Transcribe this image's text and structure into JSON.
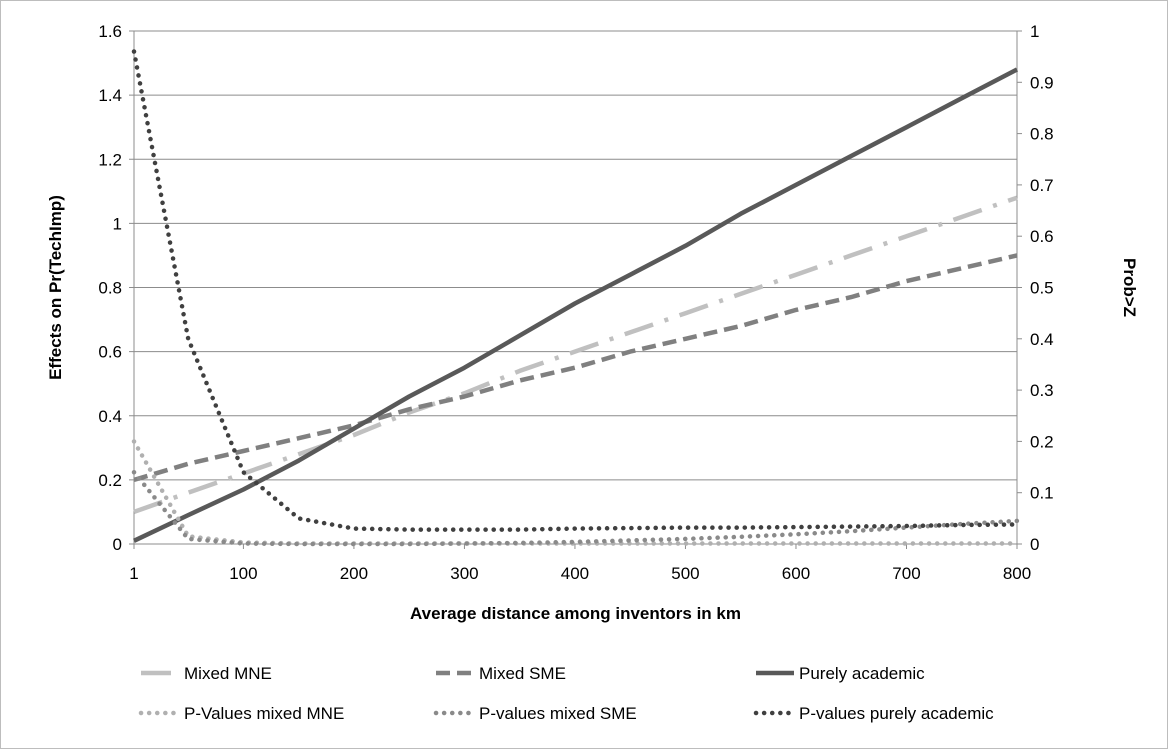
{
  "chart_data": {
    "type": "line",
    "title": "",
    "xlabel": "Average distance  among inventors in km",
    "ylabel": "Effects on Pr(TechImp)",
    "ylabel_right": "Prob>Z",
    "xlim": [
      1,
      800
    ],
    "ylim": [
      0,
      1.6
    ],
    "ylim_right": [
      0,
      1
    ],
    "x_ticks": [
      1,
      100,
      200,
      300,
      400,
      500,
      600,
      700,
      800
    ],
    "x_tick_labels": [
      "1",
      "100",
      "200",
      "300",
      "400",
      "500",
      "600",
      "700",
      "800"
    ],
    "y_ticks": [
      0,
      0.2,
      0.4,
      0.6,
      0.8,
      1,
      1.2,
      1.4,
      1.6
    ],
    "y_tick_labels": [
      "0",
      "0.2",
      "0.4",
      "0.6",
      "0.8",
      "1",
      "1.2",
      "1.4",
      "1.6"
    ],
    "y_right_ticks": [
      0,
      0.1,
      0.2,
      0.3,
      0.4,
      0.5,
      0.6,
      0.7,
      0.8,
      0.9,
      1
    ],
    "y_right_tick_labels": [
      "0",
      "0.1",
      "0.2",
      "0.3",
      "0.4",
      "0.5",
      "0.6",
      "0.7",
      "0.8",
      "0.9",
      "1"
    ],
    "grid": "horizontal",
    "legend_position": "bottom",
    "x": [
      1,
      50,
      100,
      150,
      200,
      250,
      300,
      350,
      400,
      450,
      500,
      550,
      600,
      650,
      700,
      750,
      800
    ],
    "series": [
      {
        "name": "Mixed MNE",
        "axis": "left",
        "style": "dash-dot",
        "color": "#c0c0c0",
        "values": [
          0.1,
          0.16,
          0.22,
          0.28,
          0.34,
          0.41,
          0.47,
          0.54,
          0.6,
          0.66,
          0.72,
          0.78,
          0.84,
          0.9,
          0.96,
          1.02,
          1.08
        ]
      },
      {
        "name": "Mixed SME",
        "axis": "left",
        "style": "dash",
        "color": "#808080",
        "values": [
          0.2,
          0.25,
          0.29,
          0.33,
          0.37,
          0.42,
          0.46,
          0.51,
          0.55,
          0.6,
          0.64,
          0.68,
          0.73,
          0.77,
          0.82,
          0.86,
          0.9
        ]
      },
      {
        "name": "Purely academic",
        "axis": "left",
        "style": "solid",
        "color": "#595959",
        "values": [
          0.01,
          0.09,
          0.17,
          0.26,
          0.36,
          0.46,
          0.55,
          0.65,
          0.75,
          0.84,
          0.93,
          1.03,
          1.12,
          1.21,
          1.3,
          1.39,
          1.48
        ]
      },
      {
        "name": "P-Values mixed MNE",
        "axis": "right",
        "style": "dot",
        "color": "#b0b0b0",
        "values": [
          0.2,
          0.015,
          0.003,
          0.001,
          0.001,
          0.001,
          0.001,
          0.001,
          0.001,
          0.001,
          0.001,
          0.001,
          0.001,
          0.001,
          0.001,
          0.001,
          0.001
        ]
      },
      {
        "name": "P-values mixed SME",
        "axis": "right",
        "style": "dot",
        "color": "#8a8a8a",
        "values": [
          0.14,
          0.01,
          0.001,
          0.0,
          0.0,
          0.0,
          0.001,
          0.002,
          0.004,
          0.007,
          0.01,
          0.014,
          0.019,
          0.025,
          0.032,
          0.039,
          0.045
        ]
      },
      {
        "name": "P-values purely academic",
        "axis": "right",
        "style": "dot",
        "color": "#404040",
        "values": [
          0.96,
          0.4,
          0.14,
          0.05,
          0.03,
          0.028,
          0.028,
          0.028,
          0.03,
          0.031,
          0.032,
          0.032,
          0.033,
          0.034,
          0.035,
          0.037,
          0.038
        ]
      }
    ]
  }
}
